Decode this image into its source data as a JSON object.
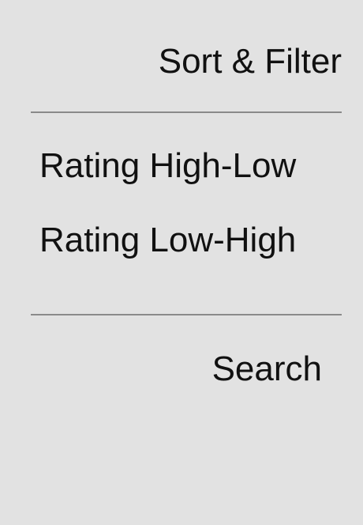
{
  "header": {
    "title": "Sort & Filter"
  },
  "sort_options": [
    {
      "label": "Rating High-Low"
    },
    {
      "label": "Rating Low-High"
    }
  ],
  "search": {
    "label": "Search"
  }
}
